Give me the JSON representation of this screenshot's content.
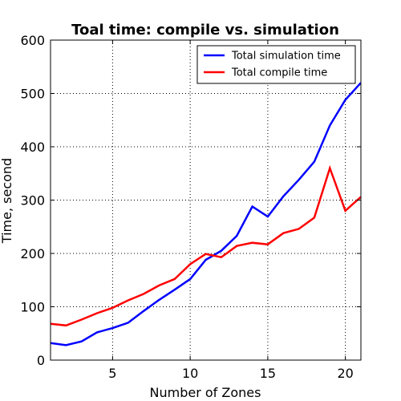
{
  "chart_data": {
    "type": "line",
    "title": "Toal time: compile vs. simulation",
    "xlabel": "Number of Zones",
    "ylabel": "Time, second",
    "xlim": [
      1,
      21
    ],
    "ylim": [
      0,
      600
    ],
    "xticks": [
      5,
      10,
      15,
      20
    ],
    "yticks": [
      0,
      100,
      200,
      300,
      400,
      500,
      600
    ],
    "grid": true,
    "legend_position": "top-right",
    "x": [
      1,
      2,
      3,
      4,
      5,
      6,
      7,
      8,
      9,
      10,
      11,
      12,
      13,
      14,
      15,
      16,
      17,
      18,
      19,
      20,
      21
    ],
    "series": [
      {
        "name": "Total simulation time",
        "color": "#0000ff",
        "values": [
          32,
          28,
          35,
          52,
          60,
          70,
          92,
          113,
          132,
          152,
          188,
          205,
          233,
          288,
          269,
          307,
          338,
          372,
          440,
          488,
          520
        ]
      },
      {
        "name": "Total compile time",
        "color": "#ff0000",
        "values": [
          68,
          65,
          76,
          88,
          98,
          112,
          124,
          140,
          152,
          180,
          199,
          193,
          214,
          220,
          217,
          238,
          246,
          267,
          360,
          280,
          306
        ]
      }
    ]
  }
}
